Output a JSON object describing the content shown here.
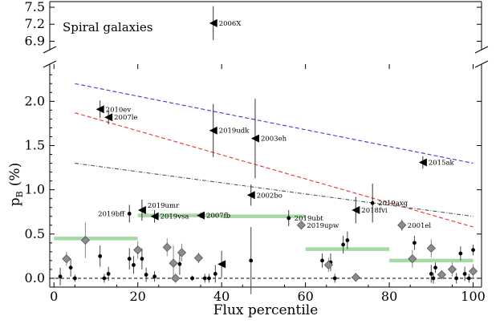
{
  "chart_data": {
    "type": "scatter",
    "xlabel": "Flux percentile",
    "ylabel_main": "p",
    "ylabel_sub": "B",
    "ylabel_unit": "(%)",
    "panel_label": "Spiral galaxies",
    "xlim": [
      -1,
      102
    ],
    "ylim_lower": [
      -0.1,
      2.42
    ],
    "ylim_upper": [
      6.75,
      7.6
    ],
    "x_ticks": [
      "0",
      "20",
      "40",
      "60",
      "80",
      "100"
    ],
    "y_ticks_lower": [
      "0.0",
      "0.5",
      "1.0",
      "1.5",
      "2.0"
    ],
    "y_ticks_upper": [
      "6.9",
      "7.2",
      "7.5"
    ],
    "colors": {
      "blue_line": "#3a3ad8",
      "red_line": "#e8352e",
      "gray_line": "#555555",
      "bands": "#a6d9a6",
      "diamond_fill": "#8c8c8c",
      "diamond_stroke": "#555555",
      "zero_line": "#000000"
    },
    "reference_lines": [
      {
        "name": "blue-dashed",
        "x": [
          5,
          100
        ],
        "y": [
          2.2,
          1.3
        ]
      },
      {
        "name": "red-dashed",
        "x": [
          5,
          100
        ],
        "y": [
          1.87,
          0.58
        ]
      },
      {
        "name": "gray-dashdot",
        "x": [
          5,
          100
        ],
        "y": [
          1.3,
          0.7
        ]
      }
    ],
    "bands": [
      {
        "x": [
          0,
          20
        ],
        "y": 0.45
      },
      {
        "x": [
          20,
          40
        ],
        "y": 0.71
      },
      {
        "x": [
          40,
          60
        ],
        "y": 0.7
      },
      {
        "x": [
          60,
          80
        ],
        "y": 0.33
      },
      {
        "x": [
          80,
          100
        ],
        "y": 0.2
      }
    ],
    "labeled_points": [
      {
        "name": "2006X",
        "x": 38,
        "y": 7.22,
        "err": 0.3,
        "upper": true
      },
      {
        "name": "2010ev",
        "x": 11,
        "y": 1.91,
        "err": 0.1,
        "upper": false
      },
      {
        "name": "2007le",
        "x": 13,
        "y": 1.82,
        "err": 0.08,
        "upper": false
      },
      {
        "name": "2019udk",
        "x": 38,
        "y": 1.67,
        "err": 0.3,
        "upper": false
      },
      {
        "name": "2003eh",
        "x": 48,
        "y": 1.58,
        "err": 0.45,
        "upper": false
      },
      {
        "name": "2015ak",
        "x": 88,
        "y": 1.31,
        "err": 0.07,
        "upper": false
      },
      {
        "name": "2002bo",
        "x": 47,
        "y": 0.94,
        "err": 0.12,
        "upper": false
      },
      {
        "name": "2019axg",
        "x": 76,
        "y": 0.85,
        "err": 0.22,
        "upper": false,
        "marker": "dot"
      },
      {
        "name": "2018fvi",
        "x": 72,
        "y": 0.77,
        "err": 0.15,
        "upper": false
      },
      {
        "name": "2019bff",
        "x": 18,
        "y": 0.73,
        "err": 0.1,
        "upper": false,
        "marker": "dot"
      },
      {
        "name": "2019umr",
        "x": 21,
        "y": 0.77,
        "err": 0.12,
        "upper": false
      },
      {
        "name": "2019vsa",
        "x": 24,
        "y": 0.7,
        "err": 0.07,
        "upper": false
      },
      {
        "name": "2007fb",
        "x": 35,
        "y": 0.71,
        "err": 0.03,
        "upper": false
      },
      {
        "name": "2019ubt",
        "x": 56,
        "y": 0.68,
        "err": 0.09,
        "upper": false,
        "marker": "dot"
      },
      {
        "name": "2019upw",
        "x": 59,
        "y": 0.6,
        "err": 0.02,
        "upper": false,
        "marker": "diamond"
      },
      {
        "name": "2001el",
        "x": 83,
        "y": 0.6,
        "err": 0.06,
        "upper": false,
        "marker": "diamond"
      }
    ],
    "dot_points": [
      {
        "x": 1.5,
        "y": 0.02,
        "err": 0.1
      },
      {
        "x": 4,
        "y": 0.12,
        "err": 0.1
      },
      {
        "x": 5,
        "y": 0.0,
        "err": 0.04
      },
      {
        "x": 11,
        "y": 0.25,
        "err": 0.12
      },
      {
        "x": 12,
        "y": 0.0,
        "err": 0.05
      },
      {
        "x": 13,
        "y": 0.05,
        "err": 0.08
      },
      {
        "x": 18,
        "y": 0.22,
        "err": 0.12
      },
      {
        "x": 19,
        "y": 0.15,
        "err": 0.1
      },
      {
        "x": 21,
        "y": 0.22,
        "err": 0.12
      },
      {
        "x": 22,
        "y": 0.04,
        "err": 0.08
      },
      {
        "x": 24,
        "y": 0.02,
        "err": 0.06
      },
      {
        "x": 30,
        "y": 0.16,
        "err": 0.12
      },
      {
        "x": 33,
        "y": 0.0,
        "err": 0.03
      },
      {
        "x": 36,
        "y": 0.0,
        "err": 0.05
      },
      {
        "x": 37,
        "y": 0.0,
        "err": 0.05
      },
      {
        "x": 38.5,
        "y": 0.05,
        "err": 0.1
      },
      {
        "x": 47,
        "y": 0.2,
        "err": 0.38
      },
      {
        "x": 64,
        "y": 0.2,
        "err": 0.08
      },
      {
        "x": 66,
        "y": 0.18,
        "err": 0.1
      },
      {
        "x": 67,
        "y": 0.0,
        "err": 0.05
      },
      {
        "x": 69,
        "y": 0.38,
        "err": 0.1
      },
      {
        "x": 70,
        "y": 0.43,
        "err": 0.1
      },
      {
        "x": 86,
        "y": 0.4,
        "err": 0.08
      },
      {
        "x": 90,
        "y": 0.05,
        "err": 0.1
      },
      {
        "x": 90.5,
        "y": 0.0,
        "err": 0.06
      },
      {
        "x": 91,
        "y": 0.12,
        "err": 0.06
      },
      {
        "x": 96,
        "y": 0.0,
        "err": 0.06
      },
      {
        "x": 97,
        "y": 0.28,
        "err": 0.08
      },
      {
        "x": 98,
        "y": 0.05,
        "err": 0.08
      },
      {
        "x": 99,
        "y": 0.0,
        "err": 0.05
      },
      {
        "x": 100,
        "y": 0.32,
        "err": 0.06
      }
    ],
    "diamond_points": [
      {
        "x": 3,
        "y": 0.22,
        "err": 0.08
      },
      {
        "x": 7.5,
        "y": 0.43,
        "err": 0.2
      },
      {
        "x": 20,
        "y": 0.32,
        "err": 0.1
      },
      {
        "x": 27,
        "y": 0.35,
        "err": 0.1
      },
      {
        "x": 28.5,
        "y": 0.17,
        "err": 0.2
      },
      {
        "x": 29,
        "y": 0.0,
        "err": 0.05
      },
      {
        "x": 30.5,
        "y": 0.29,
        "err": 0.1
      },
      {
        "x": 34.5,
        "y": 0.23,
        "err": 0.06
      },
      {
        "x": 65.5,
        "y": 0.15,
        "err": 0.08
      },
      {
        "x": 72,
        "y": 0.01,
        "err": 0.05
      },
      {
        "x": 85.5,
        "y": 0.22,
        "err": 0.1
      },
      {
        "x": 90,
        "y": 0.34,
        "err": 0.1
      },
      {
        "x": 92.5,
        "y": 0.04,
        "err": 0.05
      },
      {
        "x": 95,
        "y": 0.1,
        "err": 0.08
      },
      {
        "x": 100,
        "y": 0.08,
        "err": 0.08
      }
    ],
    "triangle_points": [
      {
        "x": 40,
        "y": 0.16,
        "err": 0.15
      }
    ]
  }
}
